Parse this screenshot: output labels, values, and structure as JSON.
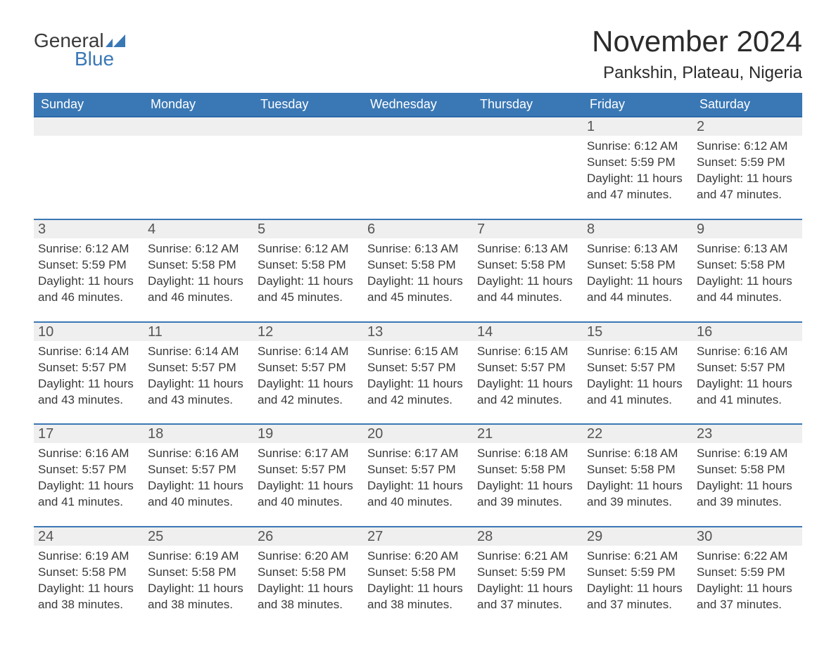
{
  "page_bg": "#ffffff",
  "brand": {
    "word1": "General",
    "word2": "Blue",
    "word1_color": "#3a3a3a",
    "word2_color": "#3a78b5",
    "logo_mark_color": "#3a78b5"
  },
  "title": {
    "month": "November 2024",
    "location": "Pankshin, Plateau, Nigeria",
    "month_fontsize": 42,
    "location_fontsize": 24,
    "color": "#2b2b2b"
  },
  "calendar": {
    "header_bg": "#3a78b5",
    "header_text_color": "#ffffff",
    "row_border_color": "#3a78b5",
    "daynum_bg": "#efefef",
    "text_color": "#3a3a3a",
    "day_headers": [
      "Sunday",
      "Monday",
      "Tuesday",
      "Wednesday",
      "Thursday",
      "Friday",
      "Saturday"
    ],
    "weeks": [
      [
        null,
        null,
        null,
        null,
        null,
        {
          "n": "1",
          "sunrise": "Sunrise: 6:12 AM",
          "sunset": "Sunset: 5:59 PM",
          "daylight": "Daylight: 11 hours and 47 minutes."
        },
        {
          "n": "2",
          "sunrise": "Sunrise: 6:12 AM",
          "sunset": "Sunset: 5:59 PM",
          "daylight": "Daylight: 11 hours and 47 minutes."
        }
      ],
      [
        {
          "n": "3",
          "sunrise": "Sunrise: 6:12 AM",
          "sunset": "Sunset: 5:59 PM",
          "daylight": "Daylight: 11 hours and 46 minutes."
        },
        {
          "n": "4",
          "sunrise": "Sunrise: 6:12 AM",
          "sunset": "Sunset: 5:58 PM",
          "daylight": "Daylight: 11 hours and 46 minutes."
        },
        {
          "n": "5",
          "sunrise": "Sunrise: 6:12 AM",
          "sunset": "Sunset: 5:58 PM",
          "daylight": "Daylight: 11 hours and 45 minutes."
        },
        {
          "n": "6",
          "sunrise": "Sunrise: 6:13 AM",
          "sunset": "Sunset: 5:58 PM",
          "daylight": "Daylight: 11 hours and 45 minutes."
        },
        {
          "n": "7",
          "sunrise": "Sunrise: 6:13 AM",
          "sunset": "Sunset: 5:58 PM",
          "daylight": "Daylight: 11 hours and 44 minutes."
        },
        {
          "n": "8",
          "sunrise": "Sunrise: 6:13 AM",
          "sunset": "Sunset: 5:58 PM",
          "daylight": "Daylight: 11 hours and 44 minutes."
        },
        {
          "n": "9",
          "sunrise": "Sunrise: 6:13 AM",
          "sunset": "Sunset: 5:58 PM",
          "daylight": "Daylight: 11 hours and 44 minutes."
        }
      ],
      [
        {
          "n": "10",
          "sunrise": "Sunrise: 6:14 AM",
          "sunset": "Sunset: 5:57 PM",
          "daylight": "Daylight: 11 hours and 43 minutes."
        },
        {
          "n": "11",
          "sunrise": "Sunrise: 6:14 AM",
          "sunset": "Sunset: 5:57 PM",
          "daylight": "Daylight: 11 hours and 43 minutes."
        },
        {
          "n": "12",
          "sunrise": "Sunrise: 6:14 AM",
          "sunset": "Sunset: 5:57 PM",
          "daylight": "Daylight: 11 hours and 42 minutes."
        },
        {
          "n": "13",
          "sunrise": "Sunrise: 6:15 AM",
          "sunset": "Sunset: 5:57 PM",
          "daylight": "Daylight: 11 hours and 42 minutes."
        },
        {
          "n": "14",
          "sunrise": "Sunrise: 6:15 AM",
          "sunset": "Sunset: 5:57 PM",
          "daylight": "Daylight: 11 hours and 42 minutes."
        },
        {
          "n": "15",
          "sunrise": "Sunrise: 6:15 AM",
          "sunset": "Sunset: 5:57 PM",
          "daylight": "Daylight: 11 hours and 41 minutes."
        },
        {
          "n": "16",
          "sunrise": "Sunrise: 6:16 AM",
          "sunset": "Sunset: 5:57 PM",
          "daylight": "Daylight: 11 hours and 41 minutes."
        }
      ],
      [
        {
          "n": "17",
          "sunrise": "Sunrise: 6:16 AM",
          "sunset": "Sunset: 5:57 PM",
          "daylight": "Daylight: 11 hours and 41 minutes."
        },
        {
          "n": "18",
          "sunrise": "Sunrise: 6:16 AM",
          "sunset": "Sunset: 5:57 PM",
          "daylight": "Daylight: 11 hours and 40 minutes."
        },
        {
          "n": "19",
          "sunrise": "Sunrise: 6:17 AM",
          "sunset": "Sunset: 5:57 PM",
          "daylight": "Daylight: 11 hours and 40 minutes."
        },
        {
          "n": "20",
          "sunrise": "Sunrise: 6:17 AM",
          "sunset": "Sunset: 5:57 PM",
          "daylight": "Daylight: 11 hours and 40 minutes."
        },
        {
          "n": "21",
          "sunrise": "Sunrise: 6:18 AM",
          "sunset": "Sunset: 5:58 PM",
          "daylight": "Daylight: 11 hours and 39 minutes."
        },
        {
          "n": "22",
          "sunrise": "Sunrise: 6:18 AM",
          "sunset": "Sunset: 5:58 PM",
          "daylight": "Daylight: 11 hours and 39 minutes."
        },
        {
          "n": "23",
          "sunrise": "Sunrise: 6:19 AM",
          "sunset": "Sunset: 5:58 PM",
          "daylight": "Daylight: 11 hours and 39 minutes."
        }
      ],
      [
        {
          "n": "24",
          "sunrise": "Sunrise: 6:19 AM",
          "sunset": "Sunset: 5:58 PM",
          "daylight": "Daylight: 11 hours and 38 minutes."
        },
        {
          "n": "25",
          "sunrise": "Sunrise: 6:19 AM",
          "sunset": "Sunset: 5:58 PM",
          "daylight": "Daylight: 11 hours and 38 minutes."
        },
        {
          "n": "26",
          "sunrise": "Sunrise: 6:20 AM",
          "sunset": "Sunset: 5:58 PM",
          "daylight": "Daylight: 11 hours and 38 minutes."
        },
        {
          "n": "27",
          "sunrise": "Sunrise: 6:20 AM",
          "sunset": "Sunset: 5:58 PM",
          "daylight": "Daylight: 11 hours and 38 minutes."
        },
        {
          "n": "28",
          "sunrise": "Sunrise: 6:21 AM",
          "sunset": "Sunset: 5:59 PM",
          "daylight": "Daylight: 11 hours and 37 minutes."
        },
        {
          "n": "29",
          "sunrise": "Sunrise: 6:21 AM",
          "sunset": "Sunset: 5:59 PM",
          "daylight": "Daylight: 11 hours and 37 minutes."
        },
        {
          "n": "30",
          "sunrise": "Sunrise: 6:22 AM",
          "sunset": "Sunset: 5:59 PM",
          "daylight": "Daylight: 11 hours and 37 minutes."
        }
      ]
    ]
  }
}
